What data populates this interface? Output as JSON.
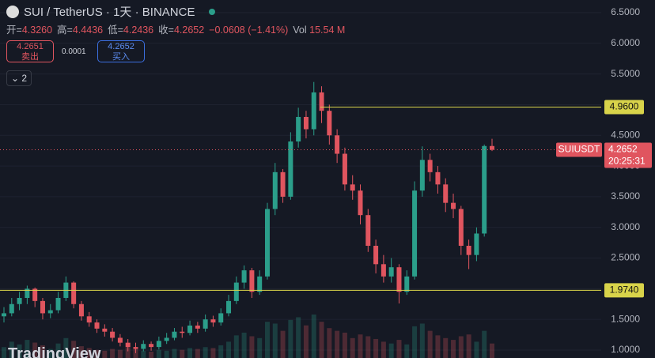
{
  "chart_data": {
    "type": "candlestick",
    "title": "SUI / TetherUS · 1天 · BINANCE",
    "ohlc_legend": [
      {
        "key": "开=",
        "value": "4.3260"
      },
      {
        "key": "高=",
        "value": "4.4436"
      },
      {
        "key": "低=",
        "value": "4.2436"
      },
      {
        "key": "收=",
        "value": "4.2652"
      }
    ],
    "change": "−0.0608 (−1.41%)",
    "volume_label": {
      "key": "Vol",
      "value": "15.54 M"
    },
    "sell": {
      "price": "4.2651",
      "label": "卖出"
    },
    "spread": "0.0001",
    "buy": {
      "price": "4.2652",
      "label": "买入"
    },
    "indicators": "2",
    "logo": "TradingView",
    "up_color": "#2b9e8a",
    "down_color": "#e0555f",
    "ylim": [
      0.871,
      6.706
    ],
    "yticks": [
      {
        "value": 1.0,
        "label": "1.0000"
      },
      {
        "value": 1.5,
        "label": "1.5000"
      },
      {
        "value": 2.0,
        "label": "2.0000"
      },
      {
        "value": 2.5,
        "label": "2.5000"
      },
      {
        "value": 3.0,
        "label": "3.0000"
      },
      {
        "value": 3.5,
        "label": "3.5000"
      },
      {
        "value": 4.0,
        "label": "4.0000"
      },
      {
        "value": 4.5,
        "label": "4.5000"
      },
      {
        "value": 5.0,
        "label": "5.0000"
      },
      {
        "value": 5.5,
        "label": "5.5000"
      },
      {
        "value": 6.0,
        "label": "6.0000"
      },
      {
        "value": 6.5,
        "label": "6.5000"
      }
    ],
    "grid": true,
    "levels": [
      {
        "value": 4.96,
        "label": "4.9600",
        "color": "#d8d34a"
      },
      {
        "value": 1.974,
        "label": "1.9740",
        "color": "#d8d34a"
      }
    ],
    "last_price": {
      "name": "SUIUSDT",
      "value": 4.2652,
      "countdown": "20:25:31",
      "color": "#e0555f"
    },
    "open": [
      1.55,
      1.6,
      1.75,
      1.85,
      2.0,
      1.8,
      1.6,
      1.65,
      1.85,
      2.1,
      1.75,
      1.55,
      1.45,
      1.35,
      1.3,
      1.2,
      1.12,
      1.05,
      1.02,
      1.1,
      1.05,
      1.15,
      1.2,
      1.3,
      1.28,
      1.4,
      1.35,
      1.5,
      1.45,
      1.6,
      1.8,
      2.1,
      2.3,
      1.95,
      2.2,
      3.3,
      3.9,
      3.5,
      4.4,
      4.8,
      4.6,
      5.2,
      4.9,
      4.5,
      4.2,
      3.7,
      3.6,
      3.2,
      2.7,
      2.4,
      2.2,
      2.35,
      1.95,
      2.2,
      3.6,
      4.1,
      3.9,
      3.7,
      3.4,
      3.3,
      2.7,
      2.55,
      2.9,
      4.326
    ],
    "high": [
      1.7,
      1.85,
      1.95,
      2.05,
      2.02,
      1.85,
      1.75,
      1.95,
      2.2,
      2.12,
      1.8,
      1.62,
      1.5,
      1.42,
      1.36,
      1.26,
      1.18,
      1.12,
      1.16,
      1.14,
      1.22,
      1.28,
      1.36,
      1.38,
      1.48,
      1.46,
      1.58,
      1.56,
      1.68,
      1.9,
      2.2,
      2.38,
      2.34,
      2.3,
      3.4,
      4.05,
      3.95,
      4.55,
      4.95,
      4.9,
      5.37,
      5.3,
      5.0,
      4.6,
      4.3,
      3.85,
      3.7,
      3.3,
      2.8,
      2.55,
      2.5,
      2.4,
      2.3,
      3.75,
      4.32,
      4.2,
      4.0,
      3.8,
      3.55,
      3.35,
      2.8,
      3.0,
      4.35,
      4.4436
    ],
    "low": [
      1.45,
      1.55,
      1.65,
      1.75,
      1.7,
      1.5,
      1.52,
      1.6,
      1.8,
      1.68,
      1.48,
      1.38,
      1.28,
      1.22,
      1.14,
      1.06,
      0.98,
      0.95,
      0.98,
      0.99,
      1.01,
      1.1,
      1.16,
      1.2,
      1.24,
      1.28,
      1.3,
      1.38,
      1.4,
      1.55,
      1.75,
      2.0,
      1.85,
      1.9,
      2.15,
      3.2,
      3.4,
      3.45,
      4.3,
      4.45,
      4.5,
      4.7,
      4.35,
      4.05,
      3.6,
      3.45,
      3.05,
      2.6,
      2.25,
      2.1,
      2.1,
      1.76,
      1.9,
      2.15,
      3.5,
      3.75,
      3.55,
      3.25,
      3.15,
      2.55,
      2.32,
      2.45,
      2.85,
      4.2436
    ],
    "close": [
      1.6,
      1.75,
      1.85,
      2.0,
      1.8,
      1.6,
      1.65,
      1.85,
      2.1,
      1.75,
      1.55,
      1.45,
      1.35,
      1.3,
      1.2,
      1.12,
      1.05,
      1.02,
      1.1,
      1.05,
      1.15,
      1.2,
      1.3,
      1.28,
      1.4,
      1.35,
      1.5,
      1.45,
      1.6,
      1.8,
      2.1,
      2.3,
      1.95,
      2.2,
      3.3,
      3.9,
      3.5,
      4.4,
      4.8,
      4.6,
      5.2,
      4.9,
      4.5,
      4.2,
      3.7,
      3.6,
      3.2,
      2.7,
      2.4,
      2.2,
      2.35,
      1.95,
      2.2,
      3.6,
      4.1,
      3.9,
      3.7,
      3.4,
      3.3,
      2.7,
      2.55,
      2.9,
      4.326,
      4.2652
    ],
    "volume": [
      12,
      18,
      15,
      20,
      17,
      14,
      10,
      16,
      22,
      19,
      13,
      11,
      9,
      8,
      10,
      9,
      12,
      11,
      8,
      7,
      9,
      8,
      10,
      9,
      11,
      10,
      12,
      11,
      14,
      18,
      25,
      28,
      24,
      22,
      40,
      38,
      30,
      42,
      45,
      36,
      48,
      40,
      33,
      30,
      28,
      22,
      26,
      24,
      21,
      18,
      16,
      20,
      15,
      35,
      38,
      30,
      25,
      22,
      20,
      24,
      26,
      18,
      30,
      16
    ]
  }
}
